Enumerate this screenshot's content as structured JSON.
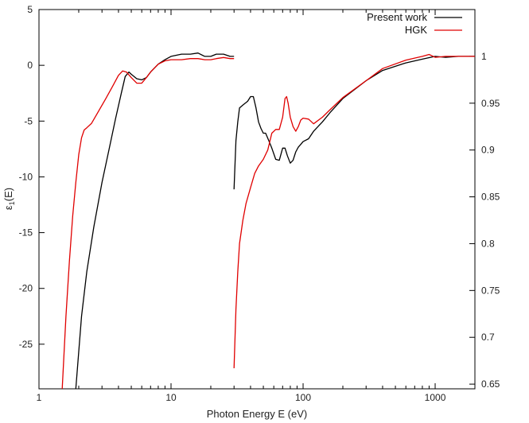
{
  "chart_data": {
    "type": "line",
    "title": "",
    "xlabel": "Photon Energy E (eV)",
    "ylabel_main": "ε",
    "ylabel_sub": "1",
    "ylabel_suffix": "(E)",
    "x_scale": "log",
    "xlim": [
      1,
      2000
    ],
    "ylim_left": [
      -29,
      5
    ],
    "ylim_right": [
      0.645,
      1.05
    ],
    "x_ticks": [
      1,
      10,
      100,
      1000
    ],
    "x_tick_labels": [
      "1",
      "10",
      "100",
      "1000"
    ],
    "y_left_ticks": [
      5,
      0,
      -5,
      -10,
      -15,
      -20,
      -25
    ],
    "y_left_tick_labels": [
      "5",
      "0",
      "-5",
      "-10",
      "-15",
      "-20",
      "-25"
    ],
    "y_right_ticks": [
      1,
      0.95,
      0.9,
      0.85,
      0.8,
      0.75,
      0.7,
      0.65
    ],
    "y_right_tick_labels": [
      "1",
      "0.95",
      "0.9",
      "0.85",
      "0.8",
      "0.75",
      "0.7",
      "0.65"
    ],
    "grid": false,
    "legend_position": "top-right",
    "series": [
      {
        "name": "Present work",
        "color": "#000000",
        "segments": [
          {
            "axis": "left",
            "x": [
              1.9,
              2.1,
              2.3,
              2.6,
              3.0,
              3.4,
              3.8,
              4.2,
              4.5,
              4.8,
              5.0,
              5.5,
              6.0,
              6.5,
              7.0,
              8.0,
              9.0,
              10,
              12,
              14,
              16,
              18,
              20,
              22,
              25,
              28,
              30
            ],
            "y": [
              -29,
              -22.5,
              -18.5,
              -14.5,
              -10.5,
              -7.5,
              -4.8,
              -2.5,
              -1.0,
              -0.6,
              -0.8,
              -1.2,
              -1.3,
              -1.1,
              -0.6,
              0.1,
              0.5,
              0.8,
              1.0,
              1.0,
              1.1,
              0.8,
              0.8,
              1.0,
              1.0,
              0.8,
              0.8
            ]
          },
          {
            "axis": "right",
            "x": [
              30,
              31,
              32,
              33,
              35,
              38,
              40,
              42,
              44,
              46,
              48,
              50,
              52,
              55,
              58,
              62,
              66,
              70,
              73,
              76,
              80,
              84,
              88,
              92,
              96,
              100,
              110,
              120,
              140,
              160,
              200,
              300,
              400,
              600,
              800,
              1000,
              1200,
              1500,
              2000
            ],
            "y": [
              0.858,
              0.91,
              0.93,
              0.945,
              0.948,
              0.952,
              0.957,
              0.957,
              0.945,
              0.93,
              0.923,
              0.918,
              0.918,
              0.91,
              0.902,
              0.89,
              0.889,
              0.902,
              0.902,
              0.894,
              0.886,
              0.889,
              0.898,
              0.903,
              0.906,
              0.909,
              0.912,
              0.92,
              0.93,
              0.94,
              0.955,
              0.974,
              0.985,
              0.993,
              0.997,
              1.0,
              0.999,
              1.0,
              1.0
            ]
          }
        ]
      },
      {
        "name": "HGK",
        "color": "#e00000",
        "segments": [
          {
            "axis": "left",
            "x": [
              1.5,
              1.6,
              1.7,
              1.8,
              1.9,
              2.0,
              2.1,
              2.2,
              2.3,
              2.5,
              2.8,
              3.2,
              3.6,
              4.0,
              4.3,
              4.6,
              5.0,
              5.5,
              6.0,
              6.5,
              7.0,
              8.0,
              9.0,
              10,
              12,
              14,
              16,
              18,
              20,
              22,
              25,
              28,
              30
            ],
            "y": [
              -29,
              -22.5,
              -17.5,
              -13.5,
              -10.5,
              -8.0,
              -6.5,
              -5.8,
              -5.6,
              -5.2,
              -4.2,
              -3.0,
              -1.9,
              -0.9,
              -0.5,
              -0.6,
              -1.1,
              -1.6,
              -1.6,
              -1.1,
              -0.6,
              0.1,
              0.4,
              0.5,
              0.5,
              0.6,
              0.6,
              0.5,
              0.5,
              0.6,
              0.7,
              0.6,
              0.6
            ]
          },
          {
            "axis": "right",
            "x": [
              30,
              31,
              32,
              33,
              35,
              37,
              40,
              43,
              46,
              50,
              54,
              58,
              62,
              66,
              70,
              73,
              75,
              77,
              80,
              84,
              88,
              92,
              96,
              100,
              110,
              120,
              140,
              160,
              200,
              300,
              400,
              600,
              800,
              900,
              1000,
              1200,
              1500,
              2000
            ],
            "y": [
              0.667,
              0.73,
              0.77,
              0.8,
              0.825,
              0.843,
              0.86,
              0.875,
              0.883,
              0.89,
              0.9,
              0.918,
              0.922,
              0.922,
              0.935,
              0.955,
              0.957,
              0.95,
              0.935,
              0.925,
              0.92,
              0.925,
              0.932,
              0.934,
              0.933,
              0.928,
              0.935,
              0.943,
              0.956,
              0.974,
              0.987,
              0.996,
              1.0,
              1.002,
              0.999,
              1.0,
              1.0,
              1.0
            ]
          }
        ]
      }
    ]
  }
}
